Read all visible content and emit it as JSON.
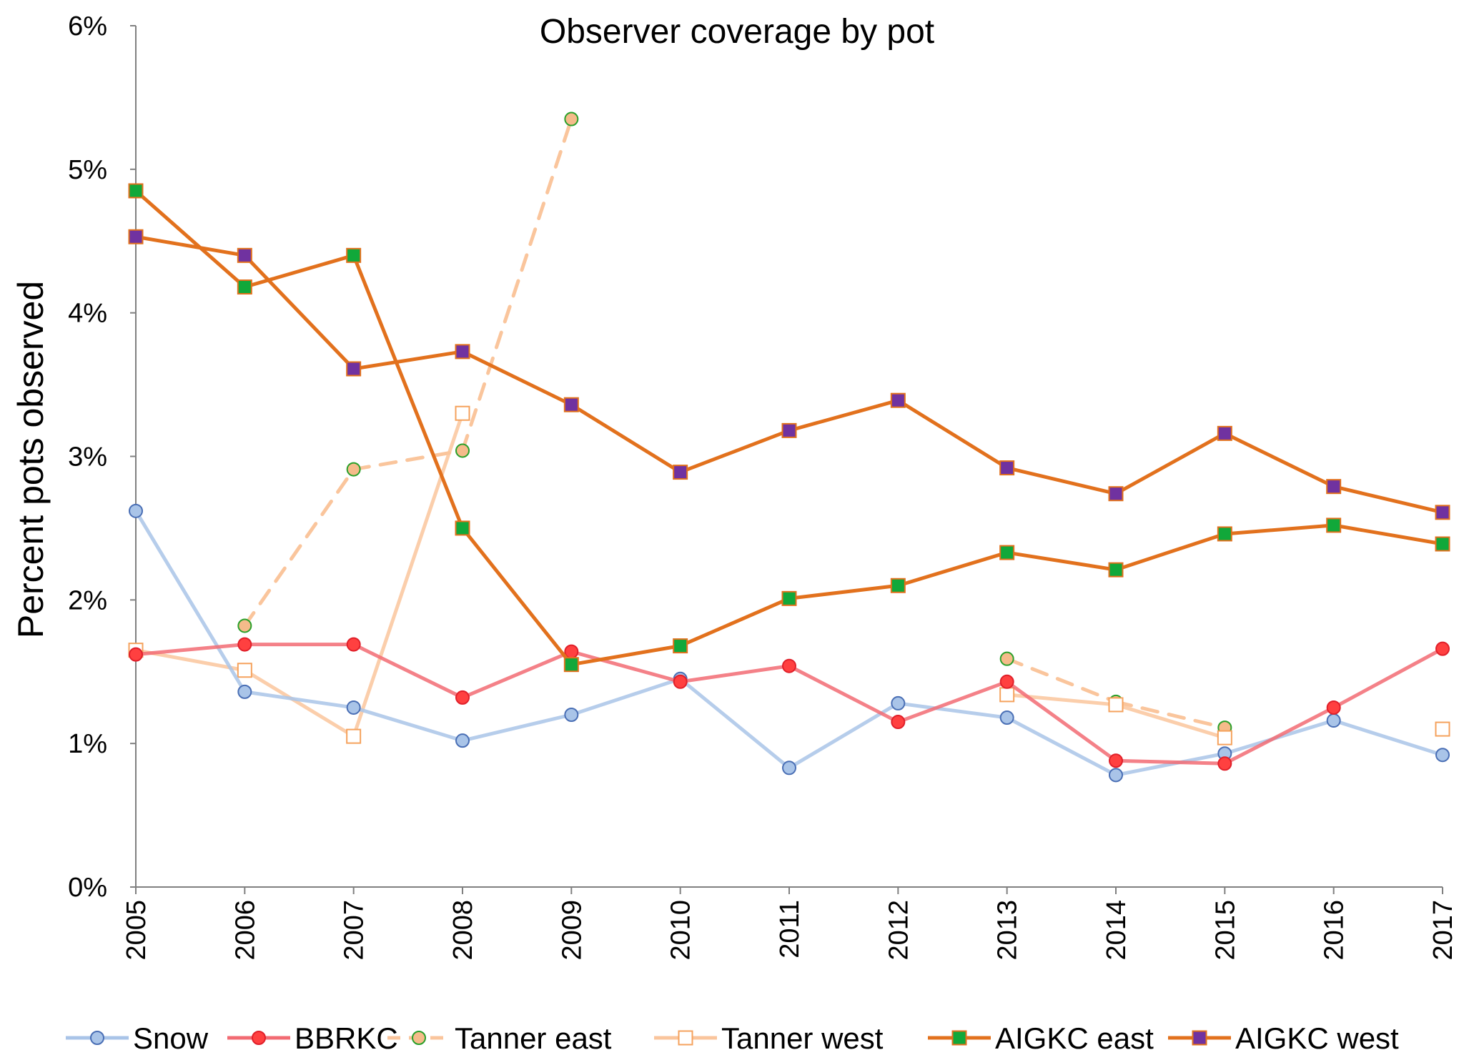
{
  "chart_data": {
    "type": "line",
    "title": "Observer coverage by pot",
    "xlabel": "",
    "ylabel": "Percent pots observed",
    "x": [
      "2005",
      "2006",
      "2007",
      "2008",
      "2009",
      "2010",
      "2011",
      "2012",
      "2013",
      "2014",
      "2015",
      "2016",
      "2017"
    ],
    "ylim": [
      0,
      6
    ],
    "yticks": [
      "0%",
      "1%",
      "2%",
      "3%",
      "4%",
      "5%",
      "6%"
    ],
    "grid": false,
    "legend_position": "bottom",
    "series": [
      {
        "name": "Snow",
        "values": [
          2.62,
          1.36,
          1.25,
          1.02,
          1.2,
          1.45,
          0.83,
          1.28,
          1.18,
          0.78,
          0.93,
          1.16,
          0.92
        ],
        "line_color": "#a9c4e8",
        "marker": "circle",
        "marker_fill": "#a9c4e8",
        "marker_stroke": "#4a6fb5",
        "dash": "solid",
        "breaks": []
      },
      {
        "name": "BBRKC",
        "values": [
          1.62,
          1.69,
          1.69,
          1.32,
          1.64,
          1.43,
          1.54,
          1.15,
          1.43,
          0.88,
          0.86,
          1.25,
          1.66
        ],
        "line_color": "#f26b73",
        "marker": "circle",
        "marker_fill": "#ff4040",
        "marker_stroke": "#e0202a",
        "dash": "solid",
        "breaks": []
      },
      {
        "name": "Tanner east",
        "values": [
          null,
          1.82,
          2.91,
          3.04,
          5.35,
          null,
          null,
          null,
          1.59,
          1.29,
          1.11,
          null,
          null
        ],
        "line_color": "#fac59c",
        "marker": "circle",
        "marker_fill": "#f5bb8a",
        "marker_stroke": "#2aa02a",
        "dash": "dashed",
        "breaks": []
      },
      {
        "name": "Tanner west",
        "values": [
          1.65,
          1.51,
          1.05,
          3.3,
          null,
          null,
          null,
          null,
          1.34,
          1.27,
          1.04,
          null,
          1.1
        ],
        "line_color": "#fac59c",
        "marker": "square",
        "marker_fill": "#ffffff",
        "marker_stroke": "#f5a25d",
        "dash": "solid",
        "breaks": [
          [
            2015,
            2017
          ]
        ]
      },
      {
        "name": "AIGKC east",
        "values": [
          4.85,
          4.18,
          4.4,
          2.5,
          1.55,
          1.68,
          2.01,
          2.1,
          2.33,
          2.21,
          2.46,
          2.52,
          2.39
        ],
        "line_color": "#e2711d",
        "marker": "square",
        "marker_fill": "#11a83a",
        "marker_stroke": "#e2711d",
        "dash": "solid",
        "breaks": []
      },
      {
        "name": "AIGKC west",
        "values": [
          4.53,
          4.4,
          3.61,
          3.73,
          3.36,
          2.89,
          3.18,
          3.39,
          2.92,
          2.74,
          3.16,
          2.79,
          2.61
        ],
        "line_color": "#e2711d",
        "marker": "square",
        "marker_fill": "#7032a0",
        "marker_stroke": "#e2711d",
        "dash": "solid",
        "breaks": []
      }
    ]
  }
}
